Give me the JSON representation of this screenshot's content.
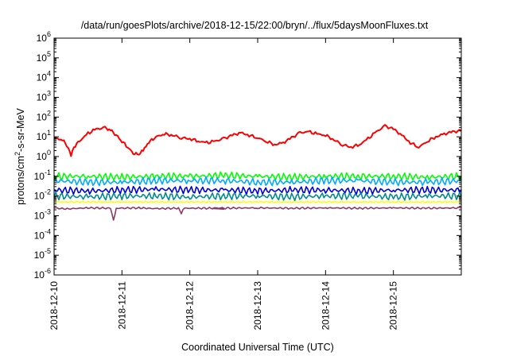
{
  "chart_data": {
    "type": "line",
    "title": "/data/run/goesPlots/archive/2018-12-15/22:00/bryn/../flux/5daysMoonFluxes.txt",
    "xlabel": "Coordinated Universal Time (UTC)",
    "ylabel": {
      "base": "protons/cm",
      "sup": "2",
      "rest": "-s-sr-MeV"
    },
    "y_scale": "log",
    "ylim": [
      "1e-6",
      "1e6"
    ],
    "xlim": [
      "2018-12-10",
      "2018-12-16"
    ],
    "x_ticks": [
      "2018-12-10",
      "2018-12-11",
      "2018-12-12",
      "2018-12-13",
      "2018-12-14",
      "2018-12-15"
    ],
    "y_ticks": [
      {
        "base": "10",
        "exp": "6"
      },
      {
        "base": "10",
        "exp": "5"
      },
      {
        "base": "10",
        "exp": "4"
      },
      {
        "base": "10",
        "exp": "3"
      },
      {
        "base": "10",
        "exp": "2"
      },
      {
        "base": "10",
        "exp": "1"
      },
      {
        "base": "10",
        "exp": "0"
      },
      {
        "base": "10",
        "exp": "-1"
      },
      {
        "base": "10",
        "exp": "-2"
      },
      {
        "base": "10",
        "exp": "-3"
      },
      {
        "base": "10",
        "exp": "-4"
      },
      {
        "base": "10",
        "exp": "-5"
      },
      {
        "base": "10",
        "exp": "-6"
      }
    ],
    "grid": false,
    "legend": "none",
    "series": [
      {
        "color": "#ff0000",
        "x": [
          "2018-12-10T00:00",
          "2018-12-10T03:00",
          "2018-12-10T05:00",
          "2018-12-10T06:00",
          "2018-12-10T07:00",
          "2018-12-10T09:00",
          "2018-12-10T12:00",
          "2018-12-10T15:00",
          "2018-12-10T18:00",
          "2018-12-10T20:00",
          "2018-12-10T22:00",
          "2018-12-11T00:00",
          "2018-12-11T02:00",
          "2018-12-11T04:00",
          "2018-12-11T06:00",
          "2018-12-11T07:00",
          "2018-12-11T08:00",
          "2018-12-11T09:00",
          "2018-12-11T10:00",
          "2018-12-11T12:00",
          "2018-12-11T15:00",
          "2018-12-11T18:00",
          "2018-12-11T21:00",
          "2018-12-12T00:00",
          "2018-12-12T03:00",
          "2018-12-12T06:00",
          "2018-12-12T09:00",
          "2018-12-12T12:00",
          "2018-12-12T15:00",
          "2018-12-12T18:00",
          "2018-12-12T21:00",
          "2018-12-13T00:00",
          "2018-12-13T03:00",
          "2018-12-13T06:00",
          "2018-12-13T09:00",
          "2018-12-13T12:00",
          "2018-12-13T15:00",
          "2018-12-13T18:00",
          "2018-12-13T21:00",
          "2018-12-14T00:00",
          "2018-12-14T03:00",
          "2018-12-14T06:00",
          "2018-12-14T09:00",
          "2018-12-14T12:00",
          "2018-12-14T15:00",
          "2018-12-14T18:00",
          "2018-12-14T21:00",
          "2018-12-15T00:00",
          "2018-12-15T03:00",
          "2018-12-15T06:00",
          "2018-12-15T09:00",
          "2018-12-15T12:00",
          "2018-12-15T15:00",
          "2018-12-15T18:00",
          "2018-12-15T21:00",
          "2018-12-15T23:59"
        ],
        "y": [
          9,
          7,
          3,
          1.2,
          3,
          6,
          15,
          25,
          28,
          22,
          12,
          6,
          3,
          1.5,
          1.2,
          2,
          2.5,
          4,
          6,
          10,
          14,
          12,
          9,
          8,
          6,
          5,
          6,
          8,
          12,
          16,
          12,
          9,
          6,
          4,
          5,
          9,
          16,
          18,
          14,
          12,
          7,
          4,
          3,
          4,
          8,
          18,
          35,
          25,
          12,
          5,
          3,
          6,
          10,
          14,
          18,
          20
        ]
      },
      {
        "color": "#00ff00",
        "x": [
          "2018-12-10T00:00",
          "2018-12-10T12:00",
          "2018-12-11T00:00",
          "2018-12-11T12:00",
          "2018-12-12T00:00",
          "2018-12-12T12:00",
          "2018-12-13T00:00",
          "2018-12-13T12:00",
          "2018-12-14T00:00",
          "2018-12-14T12:00",
          "2018-12-15T00:00",
          "2018-12-15T12:00",
          "2018-12-15T23:59"
        ],
        "y": [
          0.1,
          0.1,
          0.09,
          0.1,
          0.1,
          0.11,
          0.1,
          0.09,
          0.1,
          0.1,
          0.1,
          0.09,
          0.1
        ]
      },
      {
        "color": "#00aaff",
        "x": [
          "2018-12-10T00:00",
          "2018-12-10T12:00",
          "2018-12-11T00:00",
          "2018-12-11T12:00",
          "2018-12-12T00:00",
          "2018-12-12T12:00",
          "2018-12-13T00:00",
          "2018-12-13T12:00",
          "2018-12-14T00:00",
          "2018-12-14T12:00",
          "2018-12-15T00:00",
          "2018-12-15T12:00",
          "2018-12-15T23:59"
        ],
        "y": [
          0.06,
          0.05,
          0.05,
          0.06,
          0.06,
          0.06,
          0.05,
          0.05,
          0.06,
          0.06,
          0.05,
          0.05,
          0.06
        ]
      },
      {
        "color": "#0000dd",
        "x": [
          "2018-12-10T00:00",
          "2018-12-10T12:00",
          "2018-12-11T00:00",
          "2018-12-11T12:00",
          "2018-12-12T00:00",
          "2018-12-12T12:00",
          "2018-12-13T00:00",
          "2018-12-13T12:00",
          "2018-12-14T00:00",
          "2018-12-14T12:00",
          "2018-12-15T00:00",
          "2018-12-15T12:00",
          "2018-12-15T23:59"
        ],
        "y": [
          0.02,
          0.018,
          0.02,
          0.022,
          0.02,
          0.02,
          0.018,
          0.02,
          0.02,
          0.018,
          0.02,
          0.02,
          0.02
        ]
      },
      {
        "color": "#008b8b",
        "x": [
          "2018-12-10T00:00",
          "2018-12-10T12:00",
          "2018-12-11T00:00",
          "2018-12-11T12:00",
          "2018-12-12T00:00",
          "2018-12-12T12:00",
          "2018-12-13T00:00",
          "2018-12-13T12:00",
          "2018-12-14T00:00",
          "2018-12-14T12:00",
          "2018-12-15T00:00",
          "2018-12-15T12:00",
          "2018-12-15T23:59"
        ],
        "y": [
          0.01,
          0.009,
          0.01,
          0.01,
          0.009,
          0.01,
          0.01,
          0.009,
          0.01,
          0.01,
          0.009,
          0.01,
          0.01
        ]
      },
      {
        "color": "#ffff00",
        "x": [
          "2018-12-10T00:00",
          "2018-12-10T12:00",
          "2018-12-11T00:00",
          "2018-12-11T12:00",
          "2018-12-12T00:00",
          "2018-12-12T12:00",
          "2018-12-13T00:00",
          "2018-12-13T12:00",
          "2018-12-14T00:00",
          "2018-12-14T12:00",
          "2018-12-15T00:00",
          "2018-12-15T12:00",
          "2018-12-15T23:59"
        ],
        "y": [
          0.005,
          0.005,
          0.005,
          0.005,
          0.005,
          0.005,
          0.005,
          0.005,
          0.005,
          0.005,
          0.005,
          0.005,
          0.005
        ]
      },
      {
        "color": "#8b3a62",
        "x": [
          "2018-12-10T00:00",
          "2018-12-10T04:00",
          "2018-12-10T12:00",
          "2018-12-10T20:00",
          "2018-12-10T21:00",
          "2018-12-10T22:00",
          "2018-12-11T06:00",
          "2018-12-11T12:00",
          "2018-12-11T20:00",
          "2018-12-11T21:00",
          "2018-12-11T22:00",
          "2018-12-12T12:00",
          "2018-12-12T08:00",
          "2018-12-13T00:00",
          "2018-12-13T12:00",
          "2018-12-14T00:00",
          "2018-12-14T12:00",
          "2018-12-15T00:00",
          "2018-12-15T12:00",
          "2018-12-15T23:59"
        ],
        "y": [
          0.0025,
          0.0022,
          0.0025,
          0.0024,
          0.0006,
          0.0024,
          0.0025,
          0.0023,
          0.0024,
          0.0013,
          0.0024,
          0.0024,
          0.0024,
          0.0025,
          0.0024,
          0.0025,
          0.0024,
          0.0025,
          0.0024,
          0.0025
        ]
      }
    ]
  }
}
